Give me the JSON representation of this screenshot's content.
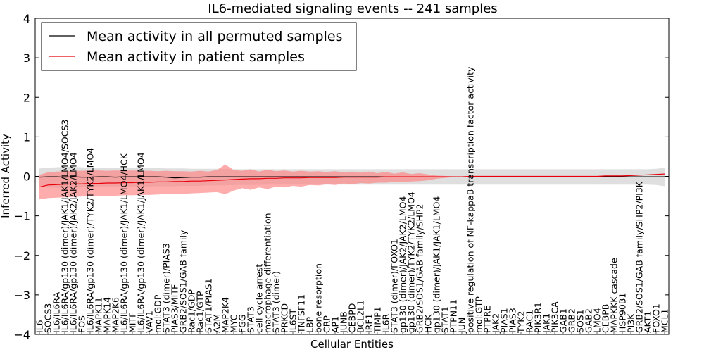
{
  "chart_data": {
    "type": "line",
    "title": "IL6-mediated signaling events -- 241 samples",
    "xlabel": "Cellular Entities",
    "ylabel": "Inferred Activity",
    "ylim": [
      -4,
      4
    ],
    "yticks": [
      "4",
      "3",
      "2",
      "1",
      "0",
      "−1",
      "−2",
      "−3",
      "−4"
    ],
    "legend": {
      "position": "top-left",
      "entries": [
        {
          "name": "Mean activity in all permuted samples",
          "color": "#000000"
        },
        {
          "name": "Mean activity in patient samples",
          "color": "#ff0000"
        }
      ]
    },
    "colors": {
      "permuted_line": "#000000",
      "permuted_band": "#c0c0c0",
      "patient_line": "#e8000b",
      "patient_band": "#ff8080"
    },
    "categories": [
      "IL6",
      "SOCS3",
      "IL6/IL6RA",
      "IL6/IL6RA/gp130 (dimer)/JAK1/JAK1/LMO4/SOCS3",
      "IL6/IL6RA/gp130 (dimer)/JAK2/JAK2/LMO4",
      "FOS",
      "IL6/IL6RA/gp130 (dimer)/TYK2/TYK2/LMO4",
      "MAPK11",
      "MAPK14",
      "MAP2K6",
      "IL6/IL6RA/gp130 (dimer)/JAK1/LMO4/HCK",
      "MITF",
      "IL6/IL6RA/gp130 (dimer)/JAK1/JAK1/LMO4",
      "VAV1",
      "mol:GDP",
      "STAT3 (dimer)/PIAS3",
      "PIAS3/MITF",
      "GRB2/SOS1/GAB family",
      "Rac1/GDP",
      "Rac1/GTP",
      "STAT1/PIAS1",
      "A2M",
      "MAP2K4",
      "MYC",
      "FGG",
      "STAT3",
      "cell cycle arrest",
      "macrophage differentiation",
      "STAT3 (dimer)",
      "PRKCD",
      "IL6ST",
      "TNFSF11",
      "LBP",
      "bone resorption",
      "CRP",
      "AP1",
      "JUNB",
      "CEBPD",
      "BCL2L1",
      "IRF1",
      "TIMP1",
      "IL6R",
      "STAT3 (dimer)/FOXO1",
      "gp130 (dimer)/JAK2/JAK2/LMO4",
      "gp130 (dimer)/TYK2/TYK2/LMO4",
      "GRB2/SOS1/GAB family/SHP2",
      "HCK",
      "gp130 (dimer)/JAK1/JAK1/LMO4",
      "STAT1",
      "PTPN11",
      "JUN",
      "positive regulation of NF-kappaB transcription factor activity",
      "mol:GTP",
      "PTPRE",
      "JAK2",
      "PIAS1",
      "PIAS3",
      "TYK2",
      "RAC1",
      "PIK3R1",
      "JAK1",
      "PIK3CA",
      "GAB1",
      "GRB2",
      "SOS1",
      "GAB2",
      "LMO4",
      "CEBPB",
      "MAPKKK cascade",
      "HSP90B1",
      "PI3K",
      "GRB2/SOS1/GAB family/SHP2/PI3K",
      "AKT1",
      "FOXO1",
      "MCL1"
    ],
    "series": [
      {
        "name": "Mean activity in all permuted samples",
        "values": [
          -0.02,
          -0.01,
          -0.01,
          -0.02,
          -0.01,
          -0.02,
          -0.02,
          -0.01,
          -0.01,
          -0.02,
          -0.01,
          -0.01,
          -0.01,
          -0.01,
          -0.01,
          -0.02,
          -0.04,
          -0.03,
          -0.02,
          -0.02,
          -0.01,
          -0.01,
          -0.01,
          -0.01,
          -0.01,
          -0.01,
          -0.01,
          -0.01,
          -0.01,
          -0.01,
          -0.01,
          -0.01,
          -0.01,
          -0.01,
          -0.01,
          -0.01,
          -0.01,
          -0.01,
          -0.01,
          -0.01,
          -0.01,
          -0.01,
          -0.01,
          -0.01,
          -0.01,
          -0.01,
          -0.01,
          -0.01,
          -0.01,
          -0.01,
          -0.01,
          -0.01,
          -0.01,
          -0.01,
          -0.01,
          -0.01,
          -0.01,
          -0.01,
          -0.01,
          -0.01,
          -0.01,
          -0.01,
          -0.01,
          -0.01,
          -0.01,
          -0.01,
          -0.01,
          -0.01,
          -0.01,
          -0.01,
          -0.01,
          -0.01,
          -0.01,
          -0.01,
          -0.01
        ],
        "lower": [
          -0.24,
          -0.28,
          -0.29,
          -0.3,
          -0.3,
          -0.28,
          -0.28,
          -0.27,
          -0.27,
          -0.27,
          -0.27,
          -0.26,
          -0.26,
          -0.26,
          -0.25,
          -0.25,
          -0.25,
          -0.24,
          -0.24,
          -0.24,
          -0.23,
          -0.23,
          -0.23,
          -0.22,
          -0.22,
          -0.22,
          -0.22,
          -0.21,
          -0.21,
          -0.21,
          -0.21,
          -0.21,
          -0.21,
          -0.21,
          -0.21,
          -0.21,
          -0.21,
          -0.21,
          -0.21,
          -0.21,
          -0.21,
          -0.21,
          -0.21,
          -0.21,
          -0.21,
          -0.21,
          -0.21,
          -0.21,
          -0.21,
          -0.21,
          -0.21,
          -0.21,
          -0.21,
          -0.21,
          -0.21,
          -0.21,
          -0.21,
          -0.21,
          -0.21,
          -0.21,
          -0.21,
          -0.21,
          -0.21,
          -0.21,
          -0.21,
          -0.21,
          -0.21,
          -0.21,
          -0.21,
          -0.21,
          -0.21,
          -0.21,
          -0.21,
          -0.22,
          -0.25
        ],
        "upper": [
          0.2,
          0.22,
          0.23,
          0.24,
          0.24,
          0.23,
          0.22,
          0.22,
          0.22,
          0.21,
          0.21,
          0.21,
          0.21,
          0.21,
          0.21,
          0.2,
          0.2,
          0.2,
          0.19,
          0.19,
          0.19,
          0.19,
          0.19,
          0.18,
          0.18,
          0.18,
          0.18,
          0.18,
          0.18,
          0.18,
          0.18,
          0.18,
          0.18,
          0.18,
          0.18,
          0.18,
          0.18,
          0.18,
          0.18,
          0.18,
          0.18,
          0.18,
          0.18,
          0.18,
          0.18,
          0.18,
          0.18,
          0.18,
          0.18,
          0.18,
          0.18,
          0.18,
          0.18,
          0.18,
          0.18,
          0.18,
          0.18,
          0.18,
          0.18,
          0.18,
          0.18,
          0.18,
          0.18,
          0.18,
          0.18,
          0.18,
          0.18,
          0.18,
          0.18,
          0.18,
          0.18,
          0.18,
          0.18,
          0.19,
          0.22
        ]
      },
      {
        "name": "Mean activity in patient samples",
        "values": [
          -0.27,
          -0.22,
          -0.21,
          -0.2,
          -0.19,
          -0.19,
          -0.18,
          -0.18,
          -0.17,
          -0.17,
          -0.16,
          -0.16,
          -0.15,
          -0.15,
          -0.14,
          -0.14,
          -0.13,
          -0.13,
          -0.12,
          -0.12,
          -0.11,
          -0.1,
          -0.09,
          -0.08,
          -0.07,
          -0.06,
          -0.06,
          -0.05,
          -0.05,
          -0.04,
          -0.04,
          -0.04,
          -0.03,
          -0.03,
          -0.03,
          -0.03,
          -0.02,
          -0.02,
          -0.02,
          -0.02,
          -0.02,
          -0.01,
          -0.01,
          -0.01,
          -0.01,
          -0.01,
          -0.01,
          -0.01,
          -0.01,
          -0.01,
          -0.01,
          0.0,
          0.0,
          0.0,
          0.0,
          0.0,
          0.0,
          0.0,
          0.0,
          0.0,
          0.0,
          0.0,
          0.0,
          0.0,
          0.0,
          0.0,
          0.0,
          0.01,
          0.01,
          0.01,
          0.02,
          0.03,
          0.04,
          0.05,
          0.06
        ],
        "lower": [
          -0.58,
          -0.55,
          -0.54,
          -0.53,
          -0.52,
          -0.51,
          -0.5,
          -0.5,
          -0.49,
          -0.49,
          -0.48,
          -0.48,
          -0.47,
          -0.47,
          -0.46,
          -0.45,
          -0.45,
          -0.44,
          -0.43,
          -0.42,
          -0.41,
          -0.4,
          -0.45,
          -0.36,
          -0.3,
          -0.34,
          -0.28,
          -0.32,
          -0.26,
          -0.28,
          -0.24,
          -0.26,
          -0.22,
          -0.23,
          -0.2,
          -0.22,
          -0.18,
          -0.2,
          -0.17,
          -0.18,
          -0.16,
          -0.16,
          -0.14,
          -0.15,
          -0.13,
          -0.12,
          -0.1,
          -0.06,
          -0.04,
          -0.02,
          -0.01,
          0.0,
          0.0,
          0.0,
          0.0,
          0.0,
          0.0,
          0.0,
          0.0,
          0.0,
          0.0,
          0.0,
          0.0,
          0.0,
          0.0,
          0.0,
          0.0,
          0.0,
          0.0,
          0.0,
          0.0,
          0.0,
          0.0,
          0.0,
          0.0
        ],
        "upper": [
          0.04,
          0.1,
          0.12,
          0.13,
          0.14,
          0.14,
          0.15,
          0.15,
          0.14,
          0.15,
          0.14,
          0.15,
          0.14,
          0.14,
          0.13,
          0.14,
          0.13,
          0.13,
          0.12,
          0.14,
          0.12,
          0.16,
          0.3,
          0.16,
          0.14,
          0.18,
          0.12,
          0.17,
          0.13,
          0.15,
          0.12,
          0.14,
          0.12,
          0.13,
          0.11,
          0.13,
          0.1,
          0.12,
          0.09,
          0.12,
          0.08,
          0.11,
          0.07,
          0.1,
          0.06,
          0.08,
          0.05,
          0.02,
          0.01,
          0.0,
          0.0,
          0.0,
          0.0,
          0.0,
          0.0,
          0.0,
          0.0,
          0.0,
          0.0,
          0.0,
          0.0,
          0.0,
          0.0,
          0.0,
          0.0,
          0.0,
          0.0,
          0.0,
          0.0,
          0.0,
          0.0,
          0.0,
          0.0,
          0.0,
          0.0
        ]
      }
    ]
  }
}
